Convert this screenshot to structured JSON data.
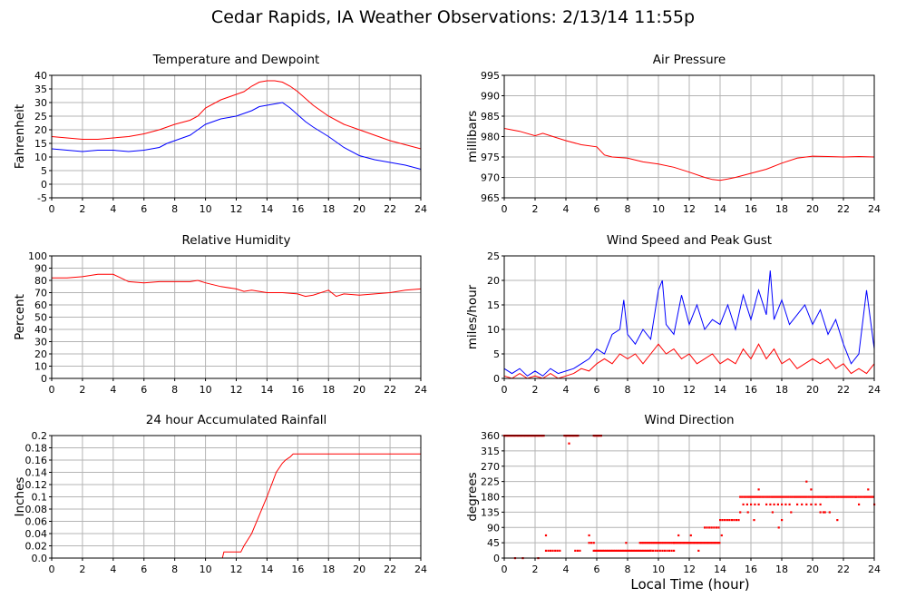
{
  "page": {
    "title": "Cedar Rapids, IA Weather Observations: 2/13/14 11:55p",
    "bottom_xlabel": "Local Time (hour)"
  },
  "colors": {
    "red": "#ff0000",
    "blue": "#0000ff",
    "grid": "#b4b4b4",
    "axis": "#000000"
  },
  "chart_data": [
    {
      "id": "temp",
      "type": "line",
      "title": "Temperature and Dewpoint",
      "xlabel": "",
      "ylabel": "Fahrenheit",
      "xlim": [
        0,
        24
      ],
      "ylim": [
        -5,
        40
      ],
      "xticks": [
        0,
        2,
        4,
        6,
        8,
        10,
        12,
        14,
        16,
        18,
        20,
        22,
        24
      ],
      "yticks": [
        -5,
        0,
        5,
        10,
        15,
        20,
        25,
        30,
        35,
        40
      ],
      "grid": true,
      "series": [
        {
          "color": "red",
          "x": [
            0,
            1,
            2,
            3,
            4,
            5,
            6,
            7,
            8,
            9,
            9.5,
            10,
            11,
            12,
            12.5,
            13,
            13.5,
            14,
            14.5,
            15,
            15.5,
            16,
            17,
            18,
            19,
            20,
            21,
            22,
            23,
            24
          ],
          "y": [
            17.5,
            17,
            16.5,
            16.5,
            17,
            17.5,
            18.5,
            20,
            22,
            23.5,
            25,
            28,
            31,
            33,
            34,
            36,
            37.5,
            38,
            38,
            37.5,
            36,
            34,
            29,
            25,
            22,
            20,
            18,
            16,
            14.5,
            13
          ]
        },
        {
          "color": "blue",
          "x": [
            0,
            1,
            2,
            3,
            4,
            5,
            6,
            7,
            7.5,
            8,
            9,
            9.5,
            10,
            11,
            12,
            12.5,
            13,
            13.5,
            14,
            15,
            15.5,
            16,
            16.5,
            17,
            18,
            19,
            20,
            21,
            22,
            23,
            24
          ],
          "y": [
            13,
            12.5,
            12,
            12.5,
            12.5,
            12,
            12.5,
            13.5,
            15,
            16,
            18,
            20,
            22,
            24,
            25,
            26,
            27,
            28.5,
            29,
            30,
            28,
            25.5,
            23,
            21,
            17.5,
            13.5,
            10.5,
            9,
            8,
            7,
            5.5
          ]
        }
      ]
    },
    {
      "id": "pressure",
      "type": "line",
      "title": "Air Pressure",
      "xlabel": "",
      "ylabel": "millibars",
      "xlim": [
        0,
        24
      ],
      "ylim": [
        965,
        995
      ],
      "xticks": [
        0,
        2,
        4,
        6,
        8,
        10,
        12,
        14,
        16,
        18,
        20,
        22,
        24
      ],
      "yticks": [
        965,
        970,
        975,
        980,
        985,
        990,
        995
      ],
      "grid": true,
      "series": [
        {
          "color": "red",
          "x": [
            0,
            1,
            2,
            2.5,
            3,
            4,
            5,
            6,
            6.5,
            7,
            8,
            9,
            10,
            11,
            12,
            13,
            13.5,
            14,
            14.5,
            15,
            16,
            17,
            18,
            19,
            20,
            21,
            22,
            23,
            24
          ],
          "y": [
            982,
            981.3,
            980.2,
            980.8,
            980.2,
            979,
            978,
            977.5,
            975.5,
            975,
            974.7,
            973.8,
            973.3,
            972.5,
            971.3,
            970,
            969.5,
            969.3,
            969.6,
            970,
            971,
            972,
            973.5,
            974.7,
            975.2,
            975.1,
            975,
            975.1,
            975
          ]
        }
      ]
    },
    {
      "id": "humidity",
      "type": "line",
      "title": "Relative Humidity",
      "xlabel": "",
      "ylabel": "Percent",
      "xlim": [
        0,
        24
      ],
      "ylim": [
        0,
        100
      ],
      "xticks": [
        0,
        2,
        4,
        6,
        8,
        10,
        12,
        14,
        16,
        18,
        20,
        22,
        24
      ],
      "yticks": [
        0,
        10,
        20,
        30,
        40,
        50,
        60,
        70,
        80,
        90,
        100
      ],
      "grid": true,
      "series": [
        {
          "color": "red",
          "x": [
            0,
            1,
            2,
            3,
            4,
            4.5,
            5,
            6,
            7,
            8,
            9,
            9.5,
            10,
            11,
            12,
            12.5,
            13,
            14,
            15,
            16,
            16.5,
            17,
            18,
            18.5,
            19,
            20,
            21,
            22,
            23,
            24
          ],
          "y": [
            82,
            82,
            83,
            85,
            85,
            82,
            79,
            78,
            79,
            79,
            79,
            80,
            78,
            75,
            73,
            71,
            72,
            70,
            70,
            69,
            67,
            68,
            72,
            67,
            69,
            68,
            69,
            70,
            72,
            73
          ]
        }
      ]
    },
    {
      "id": "wind",
      "type": "line",
      "title": "Wind Speed and Peak Gust",
      "xlabel": "",
      "ylabel": "miles/hour",
      "xlim": [
        0,
        24
      ],
      "ylim": [
        0,
        25
      ],
      "xticks": [
        0,
        2,
        4,
        6,
        8,
        10,
        12,
        14,
        16,
        18,
        20,
        22,
        24
      ],
      "yticks": [
        0,
        5,
        10,
        15,
        20,
        25
      ],
      "grid": true,
      "series": [
        {
          "color": "blue",
          "x": [
            0,
            0.5,
            1,
            1.5,
            2,
            2.5,
            3,
            3.5,
            4,
            4.5,
            5,
            5.5,
            6,
            6.5,
            7,
            7.5,
            7.75,
            8,
            8.5,
            9,
            9.5,
            10,
            10.25,
            10.5,
            11,
            11.5,
            12,
            12.5,
            13,
            13.5,
            14,
            14.5,
            15,
            15.5,
            16,
            16.5,
            17,
            17.25,
            17.5,
            18,
            18.5,
            19,
            19.5,
            20,
            20.5,
            21,
            21.5,
            22,
            22.5,
            23,
            23.5,
            24
          ],
          "y": [
            2,
            1,
            2,
            0.5,
            1.5,
            0.5,
            2,
            1,
            1.5,
            2,
            3,
            4,
            6,
            5,
            9,
            10,
            16,
            9,
            7,
            10,
            8,
            18,
            20,
            11,
            9,
            17,
            11,
            15,
            10,
            12,
            11,
            15,
            10,
            17,
            12,
            18,
            13,
            22,
            12,
            16,
            11,
            13,
            15,
            11,
            14,
            9,
            12,
            7,
            3,
            5,
            18,
            6
          ]
        },
        {
          "color": "red",
          "x": [
            0,
            0.5,
            1,
            1.5,
            2,
            2.5,
            3,
            3.5,
            4,
            4.5,
            5,
            5.5,
            6,
            6.5,
            7,
            7.5,
            8,
            8.5,
            9,
            9.5,
            10,
            10.5,
            11,
            11.5,
            12,
            12.5,
            13,
            13.5,
            14,
            14.5,
            15,
            15.5,
            16,
            16.5,
            17,
            17.5,
            18,
            18.5,
            19,
            19.5,
            20,
            20.5,
            21,
            21.5,
            22,
            22.5,
            23,
            23.5,
            24
          ],
          "y": [
            0.5,
            0,
            1,
            0,
            0.5,
            0,
            1,
            0,
            0.5,
            1,
            2,
            1.5,
            3,
            4,
            3,
            5,
            4,
            5,
            3,
            5,
            7,
            5,
            6,
            4,
            5,
            3,
            4,
            5,
            3,
            4,
            3,
            6,
            4,
            7,
            4,
            6,
            3,
            4,
            2,
            3,
            4,
            3,
            4,
            2,
            3,
            1,
            2,
            1,
            3
          ]
        }
      ]
    },
    {
      "id": "rain",
      "type": "line",
      "title": "24 hour Accumulated Rainfall",
      "xlabel": "",
      "ylabel": "Inches",
      "xlim": [
        0,
        24
      ],
      "ylim": [
        0,
        0.2
      ],
      "xticks": [
        0,
        2,
        4,
        6,
        8,
        10,
        12,
        14,
        16,
        18,
        20,
        22,
        24
      ],
      "yticks": [
        0.0,
        0.02,
        0.04,
        0.06,
        0.08,
        0.1,
        0.12,
        0.14,
        0.16,
        0.18,
        0.2
      ],
      "ytick_labels": [
        "0.0",
        "0.02",
        "0.04",
        "0.06",
        "0.08",
        "0.1",
        "0.12",
        "0.14",
        "0.16",
        "0.18",
        "0.2"
      ],
      "grid": true,
      "series": [
        {
          "color": "red",
          "x": [
            0,
            11.1,
            11.2,
            12.3,
            12.5,
            13,
            13.5,
            14,
            14.3,
            14.6,
            15,
            15.2,
            15.5,
            15.7,
            24
          ],
          "y": [
            0,
            0,
            0.01,
            0.01,
            0.02,
            0.04,
            0.07,
            0.1,
            0.12,
            0.14,
            0.155,
            0.16,
            0.165,
            0.17,
            0.17
          ]
        }
      ]
    },
    {
      "id": "winddir",
      "type": "scatter",
      "title": "Wind Direction",
      "xlabel": "Local Time (hour)",
      "ylabel": "degrees",
      "xlim": [
        0,
        24
      ],
      "ylim": [
        0,
        360
      ],
      "xticks": [
        0,
        2,
        4,
        6,
        8,
        10,
        12,
        14,
        16,
        18,
        20,
        22,
        24
      ],
      "yticks": [
        0,
        45,
        90,
        135,
        180,
        225,
        270,
        315,
        360
      ],
      "grid": true,
      "series": [
        {
          "color": "red",
          "segments": [
            {
              "x0": 0,
              "x1": 2.6,
              "step": 0.08,
              "y": 360
            },
            {
              "x0": 3.9,
              "x1": 4.8,
              "step": 0.08,
              "y": 360
            },
            {
              "x0": 5.8,
              "x1": 6.3,
              "step": 0.08,
              "y": 360
            },
            {
              "x0": 2.7,
              "x1": 3.7,
              "step": 0.15,
              "y": 22
            },
            {
              "x0": 4.6,
              "x1": 5.0,
              "step": 0.15,
              "y": 22
            },
            {
              "x0": 5.5,
              "x1": 5.9,
              "step": 0.15,
              "y": 45
            },
            {
              "x0": 5.8,
              "x1": 9.5,
              "step": 0.1,
              "y": 22
            },
            {
              "x0": 8.8,
              "x1": 11.0,
              "step": 0.1,
              "y": 45
            },
            {
              "x0": 9.5,
              "x1": 11.0,
              "step": 0.15,
              "y": 22
            },
            {
              "x0": 11.0,
              "x1": 14.0,
              "step": 0.08,
              "y": 45
            },
            {
              "x0": 13.0,
              "x1": 14.0,
              "step": 0.15,
              "y": 90
            },
            {
              "x0": 14.0,
              "x1": 15.3,
              "step": 0.15,
              "y": 112
            },
            {
              "x0": 15.3,
              "x1": 24.0,
              "step": 0.12,
              "y": 180
            },
            {
              "x0": 15.5,
              "x1": 16.5,
              "step": 0.25,
              "y": 158
            },
            {
              "x0": 17.0,
              "x1": 18.5,
              "step": 0.25,
              "y": 158
            },
            {
              "x0": 19.0,
              "x1": 20.5,
              "step": 0.3,
              "y": 158
            },
            {
              "x0": 20.5,
              "x1": 21.2,
              "step": 0.3,
              "y": 135
            }
          ],
          "points": [
            [
              0.7,
              0
            ],
            [
              1.2,
              0
            ],
            [
              2.2,
              0
            ],
            [
              2.7,
              67
            ],
            [
              4.2,
              337
            ],
            [
              5.5,
              67
            ],
            [
              7.9,
              45
            ],
            [
              11.3,
              67
            ],
            [
              12.1,
              67
            ],
            [
              12.6,
              22
            ],
            [
              14.1,
              67
            ],
            [
              15.3,
              135
            ],
            [
              15.8,
              135
            ],
            [
              16.2,
              112
            ],
            [
              16.5,
              202
            ],
            [
              17.4,
              135
            ],
            [
              17.8,
              90
            ],
            [
              18.0,
              112
            ],
            [
              18.6,
              135
            ],
            [
              19.6,
              225
            ],
            [
              19.9,
              202
            ],
            [
              20.7,
              135
            ],
            [
              21.6,
              112
            ],
            [
              23.0,
              158
            ],
            [
              23.6,
              202
            ],
            [
              24.0,
              158
            ],
            [
              22.8,
              180
            ],
            [
              20.9,
              180
            ]
          ]
        }
      ]
    }
  ]
}
